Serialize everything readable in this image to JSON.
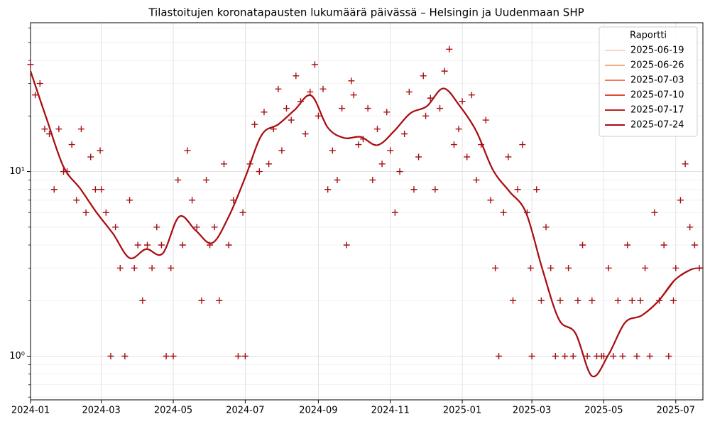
{
  "chart_data": {
    "type": "scatter-line",
    "title": "Tilastoitujen koronatapausten lukumäärä päivässä – Helsingin ja Uudenmaan SHP",
    "xlim": [
      "2024-01-01",
      "2025-07-24"
    ],
    "xticks": [
      {
        "value": "2024-01-01",
        "label": "2024-01"
      },
      {
        "value": "2024-03-01",
        "label": "2024-03"
      },
      {
        "value": "2024-05-01",
        "label": "2024-05"
      },
      {
        "value": "2024-07-01",
        "label": "2024-07"
      },
      {
        "value": "2024-09-01",
        "label": "2024-09"
      },
      {
        "value": "2024-11-01",
        "label": "2024-11"
      },
      {
        "value": "2025-01-01",
        "label": "2025-01"
      },
      {
        "value": "2025-03-01",
        "label": "2025-03"
      },
      {
        "value": "2025-05-01",
        "label": "2025-05"
      },
      {
        "value": "2025-07-01",
        "label": "2025-07"
      }
    ],
    "log_y": true,
    "ylim": [
      0.58,
      64
    ],
    "yticks": [
      {
        "value": 1,
        "label": "10⁰"
      },
      {
        "value": 10,
        "label": "10¹"
      }
    ],
    "minor_yticks": [
      0.6,
      0.7,
      0.8,
      0.9,
      2,
      3,
      4,
      5,
      6,
      7,
      8,
      9,
      20,
      30,
      40,
      50,
      60
    ],
    "grid": true,
    "legend_title": "Raportti",
    "legend_position": "upper-right",
    "points": {
      "color": "#a50f15",
      "x": [
        "2024-01-01",
        "2024-01-05",
        "2024-01-09",
        "2024-01-13",
        "2024-01-17",
        "2024-01-21",
        "2024-01-25",
        "2024-01-29",
        "2024-02-01",
        "2024-02-05",
        "2024-02-09",
        "2024-02-13",
        "2024-02-17",
        "2024-02-21",
        "2024-02-25",
        "2024-02-29",
        "2024-03-01",
        "2024-03-05",
        "2024-03-09",
        "2024-03-13",
        "2024-03-17",
        "2024-03-21",
        "2024-03-25",
        "2024-03-29",
        "2024-04-01",
        "2024-04-05",
        "2024-04-09",
        "2024-04-13",
        "2024-04-17",
        "2024-04-21",
        "2024-04-25",
        "2024-04-29",
        "2024-05-01",
        "2024-05-05",
        "2024-05-09",
        "2024-05-13",
        "2024-05-17",
        "2024-05-21",
        "2024-05-25",
        "2024-05-29",
        "2024-06-01",
        "2024-06-05",
        "2024-06-09",
        "2024-06-13",
        "2024-06-17",
        "2024-06-21",
        "2024-06-25",
        "2024-06-29",
        "2024-07-01",
        "2024-07-05",
        "2024-07-09",
        "2024-07-13",
        "2024-07-17",
        "2024-07-21",
        "2024-07-25",
        "2024-07-29",
        "2024-08-01",
        "2024-08-05",
        "2024-08-09",
        "2024-08-13",
        "2024-08-17",
        "2024-08-21",
        "2024-08-25",
        "2024-08-29",
        "2024-09-01",
        "2024-09-05",
        "2024-09-09",
        "2024-09-13",
        "2024-09-17",
        "2024-09-21",
        "2024-09-25",
        "2024-09-29",
        "2024-10-01",
        "2024-10-05",
        "2024-10-09",
        "2024-10-13",
        "2024-10-17",
        "2024-10-21",
        "2024-10-25",
        "2024-10-29",
        "2024-11-01",
        "2024-11-05",
        "2024-11-09",
        "2024-11-13",
        "2024-11-17",
        "2024-11-21",
        "2024-11-25",
        "2024-11-29",
        "2024-12-01",
        "2024-12-05",
        "2024-12-09",
        "2024-12-13",
        "2024-12-17",
        "2024-12-21",
        "2024-12-25",
        "2024-12-29",
        "2025-01-01",
        "2025-01-05",
        "2025-01-09",
        "2025-01-13",
        "2025-01-17",
        "2025-01-21",
        "2025-01-25",
        "2025-01-29",
        "2025-02-01",
        "2025-02-05",
        "2025-02-09",
        "2025-02-13",
        "2025-02-17",
        "2025-02-21",
        "2025-02-25",
        "2025-02-28",
        "2025-03-01",
        "2025-03-05",
        "2025-03-09",
        "2025-03-13",
        "2025-03-17",
        "2025-03-21",
        "2025-03-25",
        "2025-03-29",
        "2025-04-01",
        "2025-04-05",
        "2025-04-09",
        "2025-04-13",
        "2025-04-17",
        "2025-04-21",
        "2025-04-25",
        "2025-04-29",
        "2025-05-01",
        "2025-05-05",
        "2025-05-09",
        "2025-05-13",
        "2025-05-17",
        "2025-05-21",
        "2025-05-25",
        "2025-05-29",
        "2025-06-01",
        "2025-06-05",
        "2025-06-09",
        "2025-06-13",
        "2025-06-17",
        "2025-06-21",
        "2025-06-25",
        "2025-06-29",
        "2025-07-01",
        "2025-07-05",
        "2025-07-09",
        "2025-07-13",
        "2025-07-17",
        "2025-07-21"
      ],
      "values": [
        38,
        26,
        30,
        17,
        16,
        8,
        17,
        10,
        10,
        14,
        7,
        17,
        6,
        12,
        8,
        13,
        8,
        6,
        1,
        5,
        3,
        1,
        7,
        3,
        4,
        2,
        4,
        3,
        5,
        4,
        1,
        3,
        1,
        9,
        4,
        13,
        7,
        5,
        2,
        9,
        4,
        5,
        2,
        11,
        4,
        7,
        1,
        6,
        1,
        11,
        18,
        10,
        21,
        11,
        17,
        28,
        13,
        22,
        19,
        33,
        24,
        16,
        27,
        38,
        20,
        28,
        8,
        13,
        9,
        22,
        4,
        31,
        26,
        14,
        15,
        22,
        9,
        17,
        11,
        21,
        13,
        6,
        10,
        16,
        27,
        8,
        12,
        33,
        20,
        25,
        8,
        22,
        35,
        46,
        14,
        17,
        24,
        12,
        26,
        9,
        14,
        19,
        7,
        3,
        1,
        6,
        12,
        2,
        8,
        14,
        6,
        3,
        1,
        8,
        2,
        5,
        3,
        1,
        2,
        1,
        3,
        1,
        2,
        4,
        1,
        2,
        1,
        1,
        1,
        3,
        1,
        2,
        1,
        4,
        2,
        1,
        2,
        3,
        1,
        6,
        2,
        4,
        1,
        2,
        3,
        7,
        11,
        5,
        4,
        3
      ]
    },
    "x": [
      "2024-01-01",
      "2024-01-15",
      "2024-01-29",
      "2024-02-12",
      "2024-02-26",
      "2024-03-11",
      "2024-03-25",
      "2024-04-08",
      "2024-04-22",
      "2024-05-06",
      "2024-05-20",
      "2024-06-03",
      "2024-06-17",
      "2024-07-01",
      "2024-07-15",
      "2024-07-29",
      "2024-08-12",
      "2024-08-26",
      "2024-09-09",
      "2024-09-23",
      "2024-10-07",
      "2024-10-21",
      "2024-11-04",
      "2024-11-18",
      "2024-12-02",
      "2024-12-16",
      "2024-12-30",
      "2025-01-13",
      "2025-01-27",
      "2025-02-10",
      "2025-02-24",
      "2025-03-10",
      "2025-03-24",
      "2025-04-07",
      "2025-04-21",
      "2025-05-05",
      "2025-05-19",
      "2025-06-02",
      "2025-06-16",
      "2025-06-30",
      "2025-07-14",
      "2025-07-24"
    ],
    "series": [
      {
        "name": "2025-06-19",
        "color": "#fcd5c0",
        "values": [
          35,
          19,
          10.6,
          8.1,
          6,
          4.6,
          3.4,
          3.8,
          3.6,
          5.7,
          4.8,
          4.1,
          5.7,
          9.3,
          15.8,
          18,
          21.6,
          25.8,
          17.3,
          15.2,
          15.4,
          13.9,
          16.5,
          20.7,
          22.6,
          28.2,
          22.6,
          16.5,
          10.2,
          7.8,
          6,
          2.95,
          1.58,
          1.33,
          0.78,
          1.02,
          1.52,
          1.66,
          1.98,
          null,
          null,
          null
        ]
      },
      {
        "name": "2025-06-26",
        "color": "#f4a98a",
        "values": [
          35,
          19,
          10.6,
          8.1,
          6,
          4.6,
          3.4,
          3.8,
          3.6,
          5.7,
          4.8,
          4.1,
          5.7,
          9.3,
          15.8,
          18,
          21.6,
          25.8,
          17.3,
          15.2,
          15.4,
          13.9,
          16.5,
          20.7,
          22.6,
          28.2,
          22.6,
          16.5,
          10.2,
          7.8,
          6,
          2.95,
          1.58,
          1.33,
          0.78,
          1.02,
          1.52,
          1.66,
          1.98,
          null,
          null,
          null
        ]
      },
      {
        "name": "2025-07-03",
        "color": "#f07a5a",
        "values": [
          35,
          19,
          10.6,
          8.1,
          6,
          4.6,
          3.4,
          3.8,
          3.6,
          5.7,
          4.8,
          4.1,
          5.7,
          9.3,
          15.8,
          18,
          21.6,
          25.8,
          17.3,
          15.2,
          15.4,
          13.9,
          16.5,
          20.7,
          22.6,
          28.2,
          22.6,
          16.5,
          10.2,
          7.8,
          6,
          2.95,
          1.58,
          1.33,
          0.78,
          1.02,
          1.52,
          1.66,
          1.98,
          2.58,
          null,
          null
        ]
      },
      {
        "name": "2025-07-10",
        "color": "#de4a33",
        "values": [
          35,
          19,
          10.6,
          8.1,
          6,
          4.6,
          3.4,
          3.8,
          3.6,
          5.7,
          4.8,
          4.1,
          5.7,
          9.3,
          15.8,
          18,
          21.6,
          25.8,
          17.3,
          15.2,
          15.4,
          13.9,
          16.5,
          20.7,
          22.6,
          28.2,
          22.6,
          16.5,
          10.2,
          7.8,
          6,
          2.95,
          1.58,
          1.33,
          0.78,
          1.02,
          1.52,
          1.66,
          1.98,
          2.58,
          null,
          null
        ]
      },
      {
        "name": "2025-07-17",
        "color": "#c01e1e",
        "values": [
          35,
          19,
          10.6,
          8.1,
          6,
          4.6,
          3.4,
          3.8,
          3.6,
          5.7,
          4.8,
          4.1,
          5.7,
          9.3,
          15.8,
          18,
          21.6,
          25.8,
          17.3,
          15.2,
          15.4,
          13.9,
          16.5,
          20.7,
          22.6,
          28.2,
          22.6,
          16.5,
          10.2,
          7.8,
          6,
          2.95,
          1.58,
          1.33,
          0.78,
          1.02,
          1.52,
          1.66,
          1.98,
          2.58,
          2.95,
          null
        ]
      },
      {
        "name": "2025-07-24",
        "color": "#a50f15",
        "values": [
          35,
          19,
          10.6,
          8.1,
          6,
          4.6,
          3.4,
          3.8,
          3.6,
          5.7,
          4.8,
          4.1,
          5.7,
          9.3,
          15.8,
          18,
          21.6,
          25.8,
          17.3,
          15.2,
          15.4,
          13.9,
          16.5,
          20.7,
          22.6,
          28.2,
          22.6,
          16.5,
          10.2,
          7.8,
          6,
          2.95,
          1.58,
          1.33,
          0.78,
          1.02,
          1.52,
          1.66,
          1.98,
          2.58,
          2.95,
          3
        ]
      }
    ]
  }
}
